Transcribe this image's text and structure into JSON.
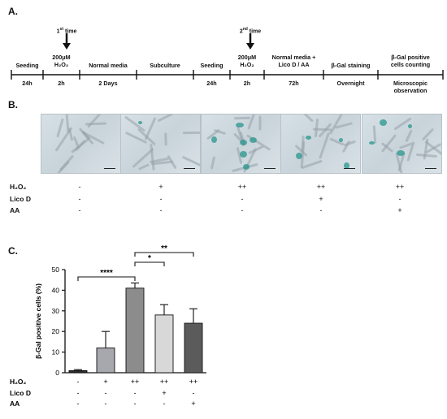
{
  "panels": {
    "a": "A.",
    "b": "B.",
    "c": "C."
  },
  "timeline": {
    "first_marker": {
      "ordinal": "1",
      "sup": "st",
      "word": "time"
    },
    "second_marker": {
      "ordinal": "2",
      "sup": "nd",
      "word": "time"
    },
    "steps": [
      {
        "label": "Seeding",
        "duration": "24h"
      },
      {
        "label": "200μM",
        "label2": "H₂O₂",
        "duration": "2h"
      },
      {
        "label": "Normal media",
        "duration": "2 Days"
      },
      {
        "label": "Subculture",
        "duration": ""
      },
      {
        "label": "Seeding",
        "duration": "24h"
      },
      {
        "label": "200μM",
        "label2": "H₂O₂",
        "duration": "2h"
      },
      {
        "label": "Normal media +",
        "label2": "Lico D / AA",
        "duration": "72h"
      },
      {
        "label": "β-Gal staining",
        "duration": "Overnight"
      },
      {
        "label": "β-Gal positive",
        "label2": "cells counting",
        "duration": "Microscopic",
        "duration2": "observation"
      }
    ]
  },
  "conditions": {
    "row_labels": [
      "H₂O₂",
      "Lico D",
      "AA"
    ],
    "panel_b": [
      [
        "-",
        "-",
        "-"
      ],
      [
        "+",
        "-",
        "-"
      ],
      [
        "++",
        "-",
        "-"
      ],
      [
        "++",
        "+",
        "-"
      ],
      [
        "++",
        "-",
        "+"
      ]
    ],
    "panel_c": [
      [
        "-",
        "-",
        "-"
      ],
      [
        "+",
        "-",
        "-"
      ],
      [
        "++",
        "-",
        "-"
      ],
      [
        "++",
        "+",
        "-"
      ],
      [
        "++",
        "-",
        "+"
      ]
    ]
  },
  "chart_data": {
    "type": "bar",
    "ylabel": "β-Gal positive cells (%)",
    "ylim": [
      0,
      50
    ],
    "yticks": [
      0,
      10,
      20,
      30,
      40,
      50
    ],
    "values": [
      1,
      12,
      41,
      28,
      24
    ],
    "errors": [
      0.5,
      8,
      2.5,
      5,
      7
    ],
    "colors": [
      "#2b2b2b",
      "#a7a7ae",
      "#8c8c8c",
      "#d8d8d8",
      "#5b5b5b"
    ],
    "significance": [
      {
        "from": 0,
        "to": 2,
        "label": "****"
      },
      {
        "from": 2,
        "to": 3,
        "label": "*"
      },
      {
        "from": 2,
        "to": 4,
        "label": "**"
      }
    ]
  }
}
